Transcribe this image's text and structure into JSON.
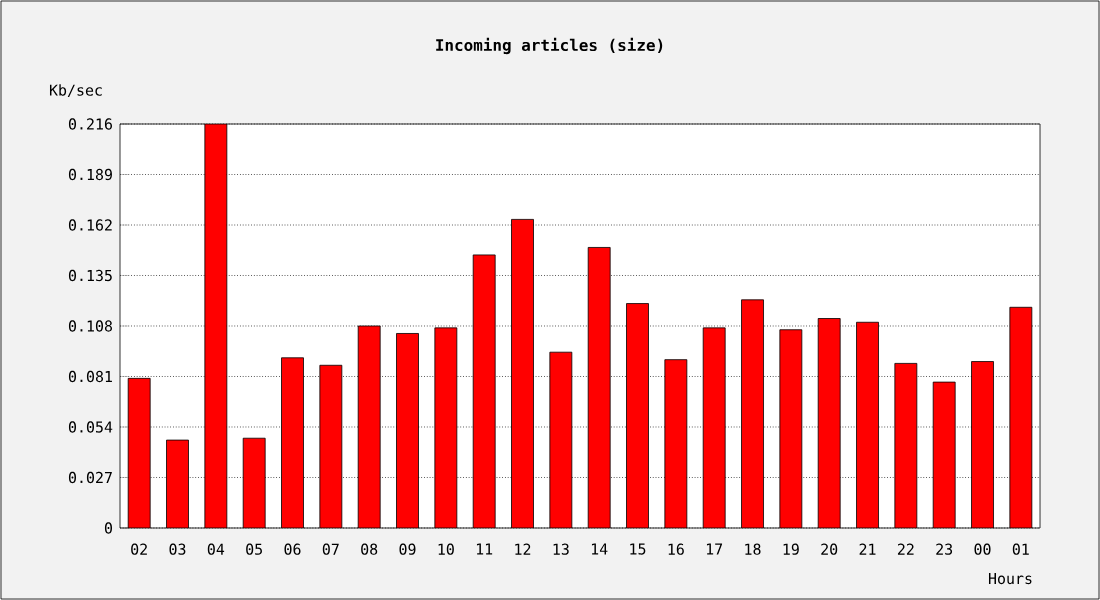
{
  "chart_data": {
    "type": "bar",
    "title": "Incoming articles (size)",
    "xlabel": "Hours",
    "ylabel": "Kb/sec",
    "categories": [
      "02",
      "03",
      "04",
      "05",
      "06",
      "07",
      "08",
      "09",
      "10",
      "11",
      "12",
      "13",
      "14",
      "15",
      "16",
      "17",
      "18",
      "19",
      "20",
      "21",
      "22",
      "23",
      "00",
      "01"
    ],
    "values": [
      0.08,
      0.047,
      0.216,
      0.048,
      0.091,
      0.087,
      0.108,
      0.104,
      0.107,
      0.146,
      0.165,
      0.094,
      0.15,
      0.12,
      0.09,
      0.107,
      0.122,
      0.106,
      0.112,
      0.11,
      0.088,
      0.078,
      0.089,
      0.118
    ],
    "color": "#ff0000",
    "ylim": [
      0,
      0.216
    ],
    "yticks": [
      0,
      0.027,
      0.054,
      0.081,
      0.108,
      0.135,
      0.162,
      0.189,
      0.216
    ],
    "grid": "y"
  }
}
